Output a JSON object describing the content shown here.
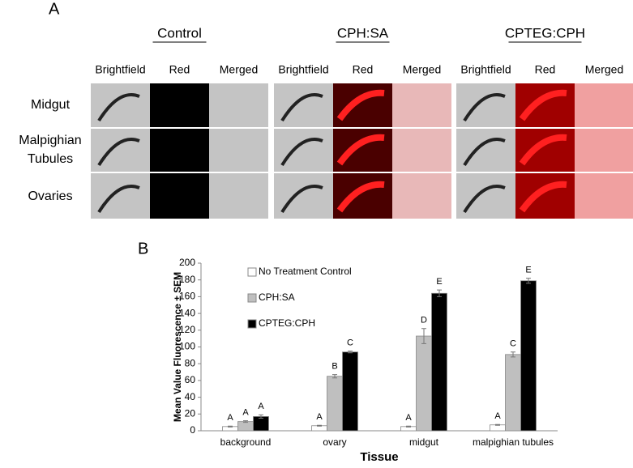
{
  "panel_a": {
    "letter": "A",
    "groups": [
      {
        "title": "Control",
        "columns": [
          "Brightfield",
          "Red",
          "Merged"
        ]
      },
      {
        "title": "CPH:SA",
        "columns": [
          "Brightfield",
          "Red",
          "Merged"
        ]
      },
      {
        "title": "CPTEG:CPH",
        "columns": [
          "Brightfield",
          "Red",
          "Merged"
        ]
      }
    ],
    "rows": [
      [
        "Midgut"
      ],
      [
        "Malpighian",
        "Tubules"
      ],
      [
        "Ovaries"
      ]
    ]
  },
  "chart_data": {
    "type": "bar",
    "panel_letter": "B",
    "y_label": "Mean Value Fluorescence ± SEM",
    "x_label": "Tissue",
    "categories": [
      "background",
      "ovary",
      "midgut",
      "malpighian tubules"
    ],
    "series": [
      {
        "name": "No Treatment Control",
        "color": "#ffffff",
        "values": [
          5,
          6,
          5,
          7
        ],
        "errors": [
          0.5,
          0.5,
          0.5,
          0.5
        ],
        "letters": [
          "A",
          "A",
          "A",
          "A"
        ]
      },
      {
        "name": "CPH:SA",
        "color": "#bfbfbf",
        "values": [
          11,
          65,
          113,
          91
        ],
        "errors": [
          1,
          2,
          9,
          3
        ],
        "letters": [
          "A",
          "B",
          "D",
          "C"
        ]
      },
      {
        "name": "CPTEG:CPH",
        "color": "#000000",
        "values": [
          17,
          94,
          164,
          179
        ],
        "errors": [
          2,
          1,
          4,
          3
        ],
        "letters": [
          "A",
          "C",
          "E",
          "E"
        ]
      }
    ],
    "ylim": [
      0,
      200
    ],
    "yticks": [
      0,
      20,
      40,
      60,
      80,
      100,
      120,
      140,
      160,
      180,
      200
    ],
    "grid": false,
    "legend": "upper left"
  }
}
